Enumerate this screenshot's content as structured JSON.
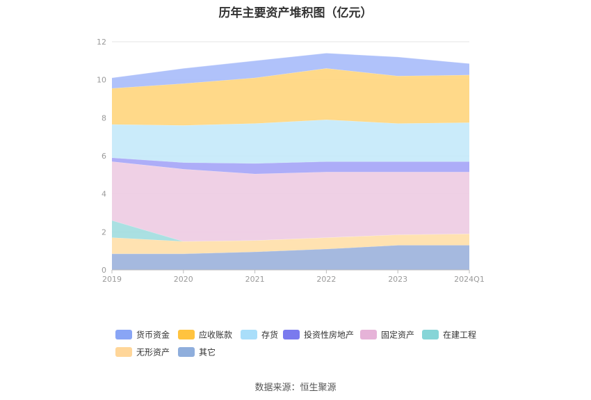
{
  "source": {
    "label": "数据来源：",
    "value": "恒生聚源"
  },
  "chart_data": {
    "type": "area",
    "stacked": true,
    "title": "历年主要资产堆积图（亿元）",
    "categories": [
      "2019",
      "2020",
      "2021",
      "2022",
      "2023",
      "2024Q1"
    ],
    "ylim": [
      0,
      12
    ],
    "yticks": [
      "0",
      "2",
      "4",
      "6",
      "8",
      "10",
      "12"
    ],
    "grid": true,
    "legend_position": "bottom",
    "series": [
      {
        "name": "其它",
        "color": "#9db3dc",
        "values": [
          0.85,
          0.85,
          0.95,
          1.1,
          1.3,
          1.3
        ]
      },
      {
        "name": "无形资产",
        "color": "#ffe0aa",
        "values": [
          0.85,
          0.65,
          0.6,
          0.6,
          0.55,
          0.6
        ]
      },
      {
        "name": "在建工程",
        "color": "#a3dde0",
        "values": [
          0.9,
          0.0,
          0.0,
          0.0,
          0.0,
          0.0
        ]
      },
      {
        "name": "固定资产",
        "color": "#eecce3",
        "values": [
          3.1,
          3.8,
          3.5,
          3.45,
          3.3,
          3.25
        ]
      },
      {
        "name": "投资性房地产",
        "color": "#a6a6f7",
        "values": [
          0.2,
          0.35,
          0.55,
          0.55,
          0.55,
          0.55
        ]
      },
      {
        "name": "存货",
        "color": "#c6e9fa",
        "values": [
          1.75,
          1.95,
          2.1,
          2.2,
          2.0,
          2.05
        ]
      },
      {
        "name": "应收账款",
        "color": "#ffd67f",
        "values": [
          1.9,
          2.2,
          2.4,
          2.7,
          2.5,
          2.5
        ]
      },
      {
        "name": "货币资金",
        "color": "#a9bdfa",
        "values": [
          0.55,
          0.8,
          0.9,
          0.8,
          1.0,
          0.6
        ]
      }
    ],
    "legend_order": [
      "货币资金",
      "应收账款",
      "存货",
      "投资性房地产",
      "固定资产",
      "在建工程",
      "无形资产",
      "其它"
    ],
    "legend_swatch_colors": {
      "货币资金": "#89a5f5",
      "应收账款": "#ffc33f",
      "存货": "#a9defa",
      "投资性房地产": "#7a7aee",
      "固定资产": "#e6b3d8",
      "在建工程": "#86d5d7",
      "无形资产": "#ffd699",
      "其它": "#8faedc"
    }
  }
}
